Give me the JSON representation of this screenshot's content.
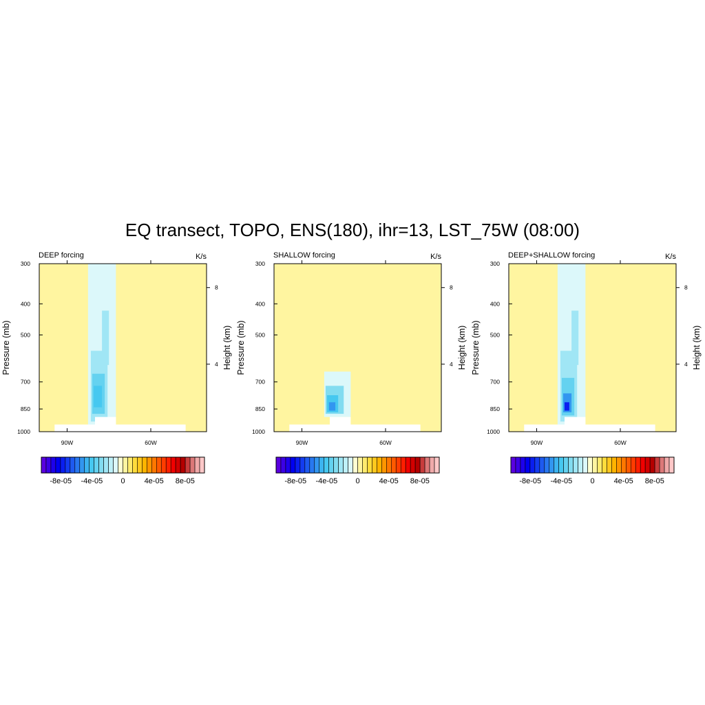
{
  "figure_title": "EQ transect, TOPO, ENS(180), ihr=13, LST_75W (08:00)",
  "colors": {
    "background_field": "#FFFFB6",
    "terrain": "#FFFFFF",
    "frame": "#000000",
    "colorbar": [
      "#5A00E0",
      "#3C00E6",
      "#1E00EC",
      "#0000F0",
      "#0A1EF0",
      "#143CF0",
      "#1E5AF0",
      "#2878F0",
      "#3296F0",
      "#3CB4F0",
      "#46C8F0",
      "#64D2F0",
      "#82DCF0",
      "#A0E6F5",
      "#BEF0F8",
      "#DCF8FA",
      "#FFFFD2",
      "#FFF5A0",
      "#FFEB6E",
      "#FFDC3C",
      "#FFC81E",
      "#FFB400",
      "#FF9600",
      "#FF7800",
      "#FF5A00",
      "#FF3C00",
      "#FF1E00",
      "#F00000",
      "#D20000",
      "#B40000",
      "#C83C3C",
      "#DC7878",
      "#F0AAAA",
      "#FFC8C8"
    ]
  },
  "chart_data": [
    {
      "type": "heatmap",
      "title": "DEEP forcing",
      "units_label": "K/s",
      "ylabel": "Pressure (mb)",
      "ylabel_right": "Height (km)",
      "x_ticks": [
        "90W",
        "60W"
      ],
      "x_tick_values": [
        -90,
        -60
      ],
      "xlim": [
        -100,
        -40
      ],
      "y_ticks": [
        "300",
        "400",
        "500",
        "700",
        "850",
        "1000"
      ],
      "y_tick_values": [
        300,
        400,
        500,
        700,
        850,
        1000
      ],
      "ylim": [
        1000,
        300
      ],
      "height_ticks": [
        "8",
        "4"
      ],
      "height_tick_values": [
        8,
        4
      ],
      "background_value": 0,
      "cells": [
        {
          "x": [
            -82.5,
            -72.5
          ],
          "p": [
            1000,
            300
          ],
          "value": -1.2e-05
        },
        {
          "x": [
            -81.5,
            -75.5
          ],
          "p": [
            930,
            560
          ],
          "value": -2.2e-05
        },
        {
          "x": [
            -81.0,
            -76.5
          ],
          "p": [
            880,
            660
          ],
          "value": -3.2e-05
        },
        {
          "x": [
            -80.5,
            -77.5
          ],
          "p": [
            840,
            720
          ],
          "value": -3.8e-05
        },
        {
          "x": [
            -77.5,
            -75.0
          ],
          "p": [
            620,
            420
          ],
          "value": -2.2e-05
        }
      ],
      "terrain": [
        {
          "x": [
            -94.5,
            -47.5
          ],
          "p": [
            1000,
            950
          ]
        },
        {
          "x": [
            -80.0,
            -72.5
          ],
          "p": [
            1000,
            900
          ]
        }
      ]
    },
    {
      "type": "heatmap",
      "title": "SHALLOW forcing",
      "units_label": "K/s",
      "ylabel": "Pressure (mb)",
      "ylabel_right": "Height (km)",
      "x_ticks": [
        "90W",
        "60W"
      ],
      "x_tick_values": [
        -90,
        -60
      ],
      "xlim": [
        -100,
        -40
      ],
      "y_ticks": [
        "300",
        "400",
        "500",
        "700",
        "850",
        "1000"
      ],
      "y_tick_values": [
        300,
        400,
        500,
        700,
        850,
        1000
      ],
      "ylim": [
        1000,
        300
      ],
      "height_ticks": [
        "8",
        "4"
      ],
      "height_tick_values": [
        8,
        4
      ],
      "background_value": 0,
      "cells": [
        {
          "x": [
            -82.0,
            -72.5
          ],
          "p": [
            900,
            650
          ],
          "value": -1.2e-05
        },
        {
          "x": [
            -81.5,
            -75.0
          ],
          "p": [
            880,
            720
          ],
          "value": -2.5e-05
        },
        {
          "x": [
            -81.0,
            -77.0
          ],
          "p": [
            870,
            770
          ],
          "value": -4e-05
        },
        {
          "x": [
            -80.3,
            -78.0
          ],
          "p": [
            860,
            810
          ],
          "value": -5.5e-05
        }
      ],
      "terrain": [
        {
          "x": [
            -94.5,
            -47.5
          ],
          "p": [
            1000,
            950
          ]
        },
        {
          "x": [
            -80.0,
            -72.5
          ],
          "p": [
            1000,
            900
          ]
        }
      ]
    },
    {
      "type": "heatmap",
      "title": "DEEP+SHALLOW forcing",
      "units_label": "K/s",
      "ylabel": "Pressure (mb)",
      "ylabel_right": "Height (km)",
      "x_ticks": [
        "90W",
        "60W"
      ],
      "x_tick_values": [
        -90,
        -60
      ],
      "xlim": [
        -100,
        -40
      ],
      "y_ticks": [
        "300",
        "400",
        "500",
        "700",
        "850",
        "1000"
      ],
      "y_tick_values": [
        300,
        400,
        500,
        700,
        850,
        1000
      ],
      "ylim": [
        1000,
        300
      ],
      "height_ticks": [
        "8",
        "4"
      ],
      "height_tick_values": [
        8,
        4
      ],
      "background_value": 0,
      "cells": [
        {
          "x": [
            -82.5,
            -72.5
          ],
          "p": [
            1000,
            300
          ],
          "value": -1.2e-05
        },
        {
          "x": [
            -81.5,
            -75.5
          ],
          "p": [
            930,
            560
          ],
          "value": -2.2e-05
        },
        {
          "x": [
            -81.0,
            -76.5
          ],
          "p": [
            890,
            680
          ],
          "value": -3.5e-05
        },
        {
          "x": [
            -80.5,
            -77.5
          ],
          "p": [
            870,
            760
          ],
          "value": -5e-05
        },
        {
          "x": [
            -80.0,
            -78.3
          ],
          "p": [
            860,
            810
          ],
          "value": -7.5e-05
        },
        {
          "x": [
            -77.5,
            -75.0
          ],
          "p": [
            620,
            420
          ],
          "value": -2.2e-05
        }
      ],
      "terrain": [
        {
          "x": [
            -94.5,
            -47.5
          ],
          "p": [
            1000,
            950
          ]
        },
        {
          "x": [
            -80.0,
            -72.5
          ],
          "p": [
            1000,
            900
          ]
        }
      ]
    }
  ],
  "colorbar": {
    "tick_labels": [
      "-8e-05",
      "-4e-05",
      "0",
      "4e-05",
      "8e-05"
    ],
    "tick_values": [
      -8e-05,
      -4e-05,
      0,
      4e-05,
      8e-05
    ],
    "min": -0.000105,
    "max": 0.000105
  }
}
